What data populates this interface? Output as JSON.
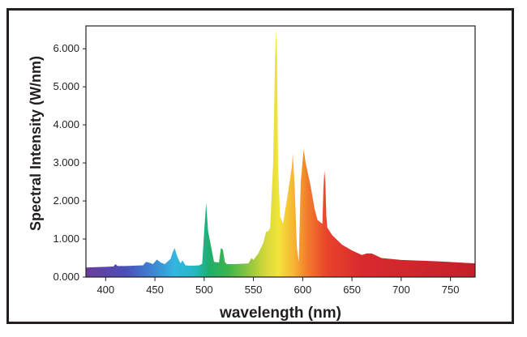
{
  "chart_data": {
    "type": "area",
    "title": "",
    "xlabel": "wavelength (nm)",
    "ylabel": "Spectral Intensity (W/nm)",
    "xlim": [
      380,
      775
    ],
    "ylim": [
      0,
      6.6
    ],
    "x_ticks": [
      400,
      450,
      500,
      550,
      600,
      650,
      700,
      750
    ],
    "x_tick_labels": [
      "400",
      "450",
      "500",
      "550",
      "600",
      "650",
      "700",
      "750"
    ],
    "y_ticks": [
      0,
      1,
      2,
      3,
      4,
      5,
      6
    ],
    "y_tick_labels": [
      "0.000",
      "1.000",
      "2.000",
      "3.000",
      "4.000",
      "5.000",
      "6.000"
    ],
    "grid": false,
    "legend": "none",
    "fill": "visible-spectrum-gradient",
    "series": [
      {
        "x": [
          380,
          400,
          408,
          410,
          412,
          420,
          430,
          438,
          441,
          444,
          448,
          450,
          452,
          456,
          460,
          466,
          468,
          470,
          473,
          476,
          478,
          481,
          484,
          490,
          495,
          498,
          500,
          502,
          504,
          510,
          515,
          517,
          519,
          521,
          523,
          530,
          540,
          545,
          548,
          550,
          552,
          555,
          560,
          563,
          565,
          567,
          570,
          572,
          573,
          574,
          575,
          577,
          580,
          585,
          589,
          590,
          592,
          594,
          596,
          598,
          601,
          603,
          608,
          612,
          615,
          620,
          621,
          622,
          623,
          624,
          625,
          630,
          640,
          650,
          660,
          665,
          670,
          680,
          700,
          720,
          740,
          760,
          775
        ],
        "y": [
          0.25,
          0.27,
          0.28,
          0.34,
          0.29,
          0.29,
          0.3,
          0.31,
          0.4,
          0.38,
          0.34,
          0.4,
          0.46,
          0.38,
          0.34,
          0.48,
          0.65,
          0.76,
          0.52,
          0.36,
          0.44,
          0.31,
          0.3,
          0.3,
          0.31,
          0.35,
          1.2,
          1.95,
          1.2,
          0.4,
          0.38,
          0.76,
          0.72,
          0.4,
          0.34,
          0.34,
          0.35,
          0.36,
          0.5,
          0.45,
          0.52,
          0.62,
          0.9,
          1.2,
          1.2,
          1.3,
          3.0,
          5.8,
          6.45,
          5.8,
          3.0,
          1.6,
          1.4,
          2.2,
          2.9,
          3.25,
          2.3,
          0.8,
          0.4,
          2.5,
          3.35,
          3.0,
          2.4,
          1.8,
          1.5,
          1.4,
          2.3,
          2.8,
          2.5,
          1.6,
          1.3,
          1.1,
          0.85,
          0.7,
          0.58,
          0.62,
          0.62,
          0.5,
          0.45,
          0.43,
          0.41,
          0.38,
          0.36
        ]
      }
    ]
  }
}
